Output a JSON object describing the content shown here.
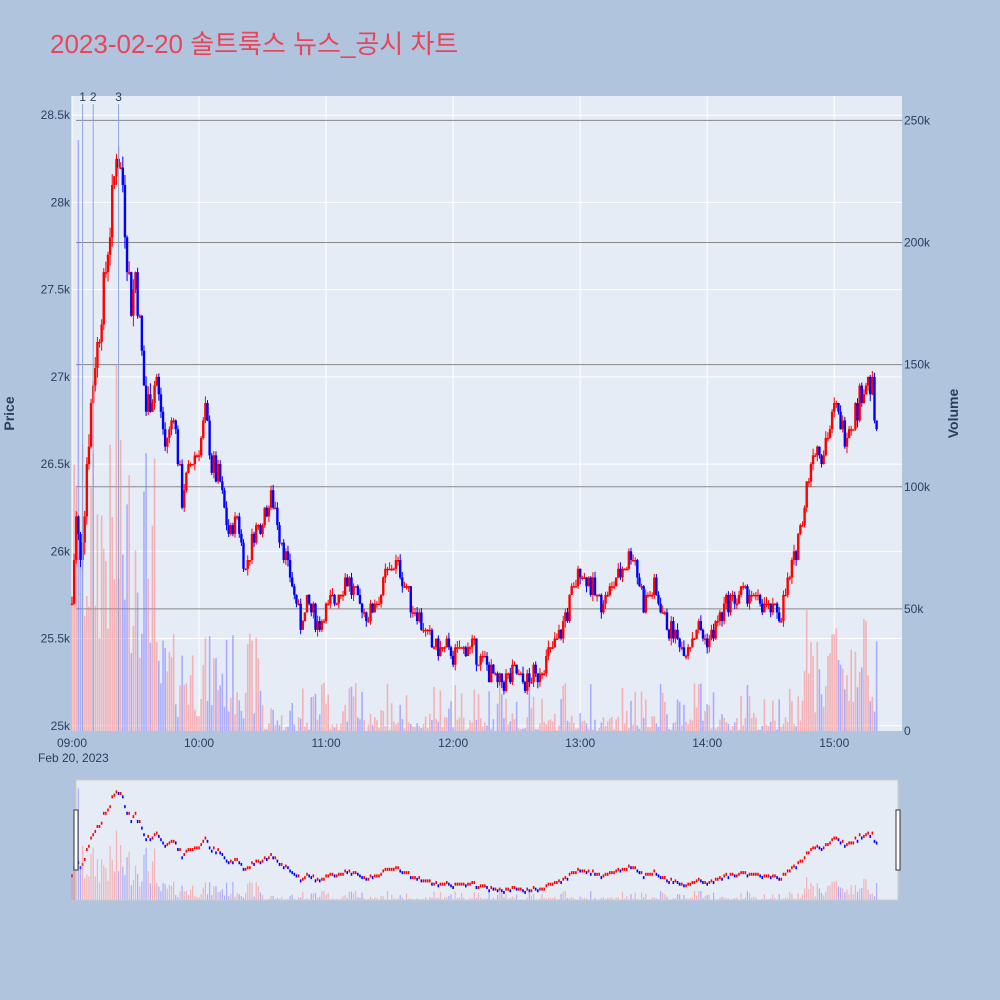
{
  "title": "2023-02-20 솔트룩스 뉴스_공시 차트",
  "colors": {
    "background": "#b0c4de",
    "plot_bg": "#e5ecf6",
    "up": "#ff0000",
    "down": "#0000ff",
    "title": "#e8455a"
  },
  "chart_data": {
    "type": "candlestick",
    "date_label": "Feb 20, 2023",
    "ylabel": "Price",
    "y2label": "Volume",
    "ylim": [
      24970,
      28610
    ],
    "y2lim": [
      0,
      260000
    ],
    "yticks": [
      "25k",
      "25.5k",
      "26k",
      "26.5k",
      "27k",
      "27.5k",
      "28k",
      "28.5k"
    ],
    "yticks_values": [
      25000,
      25500,
      26000,
      26500,
      27000,
      27500,
      28000,
      28500
    ],
    "y2ticks": [
      "0",
      "50k",
      "100k",
      "150k",
      "200k",
      "250k"
    ],
    "y2ticks_values": [
      0,
      50000,
      100000,
      150000,
      200000,
      250000
    ],
    "xticks": [
      "09:00",
      "10:00",
      "11:00",
      "12:00",
      "13:00",
      "14:00",
      "15:00"
    ],
    "xticks_values": [
      "09:00",
      "10:00",
      "11:00",
      "12:00",
      "13:00",
      "14:00",
      "15:00"
    ],
    "xrange": [
      "09:00",
      "15:32"
    ],
    "news_markers": [
      {
        "label": "1",
        "time": "09:05"
      },
      {
        "label": "2",
        "time": "09:10"
      },
      {
        "label": "3",
        "time": "09:22"
      }
    ],
    "price_path": [
      [
        "09:00",
        25700
      ],
      [
        "09:02",
        26200
      ],
      [
        "09:04",
        25900
      ],
      [
        "09:07",
        26500
      ],
      [
        "09:10",
        27000
      ],
      [
        "09:13",
        27300
      ],
      [
        "09:16",
        27600
      ],
      [
        "09:19",
        28000
      ],
      [
        "09:21",
        28300
      ],
      [
        "09:24",
        28100
      ],
      [
        "09:26",
        27700
      ],
      [
        "09:28",
        27400
      ],
      [
        "09:30",
        27600
      ],
      [
        "09:33",
        27100
      ],
      [
        "09:35",
        26800
      ],
      [
        "09:40",
        27000
      ],
      [
        "09:44",
        26600
      ],
      [
        "09:48",
        26800
      ],
      [
        "09:52",
        26300
      ],
      [
        "09:56",
        26500
      ],
      [
        "10:00",
        26600
      ],
      [
        "10:03",
        26800
      ],
      [
        "10:06",
        26500
      ],
      [
        "10:10",
        26400
      ],
      [
        "10:14",
        26100
      ],
      [
        "10:18",
        26200
      ],
      [
        "10:22",
        25900
      ],
      [
        "10:26",
        26100
      ],
      [
        "10:30",
        26200
      ],
      [
        "10:35",
        26300
      ],
      [
        "10:40",
        26000
      ],
      [
        "10:44",
        25800
      ],
      [
        "10:48",
        25600
      ],
      [
        "10:52",
        25700
      ],
      [
        "10:56",
        25600
      ],
      [
        "11:00",
        25650
      ],
      [
        "11:05",
        25750
      ],
      [
        "11:10",
        25850
      ],
      [
        "11:15",
        25700
      ],
      [
        "11:20",
        25650
      ],
      [
        "11:25",
        25750
      ],
      [
        "11:30",
        25900
      ],
      [
        "11:35",
        25900
      ],
      [
        "11:40",
        25700
      ],
      [
        "11:45",
        25600
      ],
      [
        "11:50",
        25450
      ],
      [
        "11:55",
        25450
      ],
      [
        "12:00",
        25400
      ],
      [
        "12:05",
        25450
      ],
      [
        "12:10",
        25450
      ],
      [
        "12:15",
        25350
      ],
      [
        "12:20",
        25250
      ],
      [
        "12:25",
        25250
      ],
      [
        "12:30",
        25300
      ],
      [
        "12:35",
        25250
      ],
      [
        "12:40",
        25300
      ],
      [
        "12:45",
        25400
      ],
      [
        "12:50",
        25500
      ],
      [
        "12:55",
        25700
      ],
      [
        "13:00",
        25900
      ],
      [
        "13:05",
        25800
      ],
      [
        "13:10",
        25700
      ],
      [
        "13:15",
        25800
      ],
      [
        "13:20",
        25900
      ],
      [
        "13:25",
        26000
      ],
      [
        "13:30",
        25700
      ],
      [
        "13:35",
        25800
      ],
      [
        "13:40",
        25600
      ],
      [
        "13:45",
        25500
      ],
      [
        "13:50",
        25450
      ],
      [
        "13:55",
        25550
      ],
      [
        "14:00",
        25500
      ],
      [
        "14:05",
        25600
      ],
      [
        "14:10",
        25700
      ],
      [
        "14:15",
        25750
      ],
      [
        "14:20",
        25750
      ],
      [
        "14:25",
        25700
      ],
      [
        "14:30",
        25650
      ],
      [
        "14:35",
        25650
      ],
      [
        "14:40",
        25900
      ],
      [
        "14:45",
        26200
      ],
      [
        "14:50",
        26600
      ],
      [
        "14:55",
        26600
      ],
      [
        "15:00",
        26800
      ],
      [
        "15:05",
        26700
      ],
      [
        "15:10",
        26800
      ],
      [
        "15:15",
        27000
      ],
      [
        "15:18",
        26900
      ],
      [
        "15:20",
        26600
      ]
    ]
  }
}
